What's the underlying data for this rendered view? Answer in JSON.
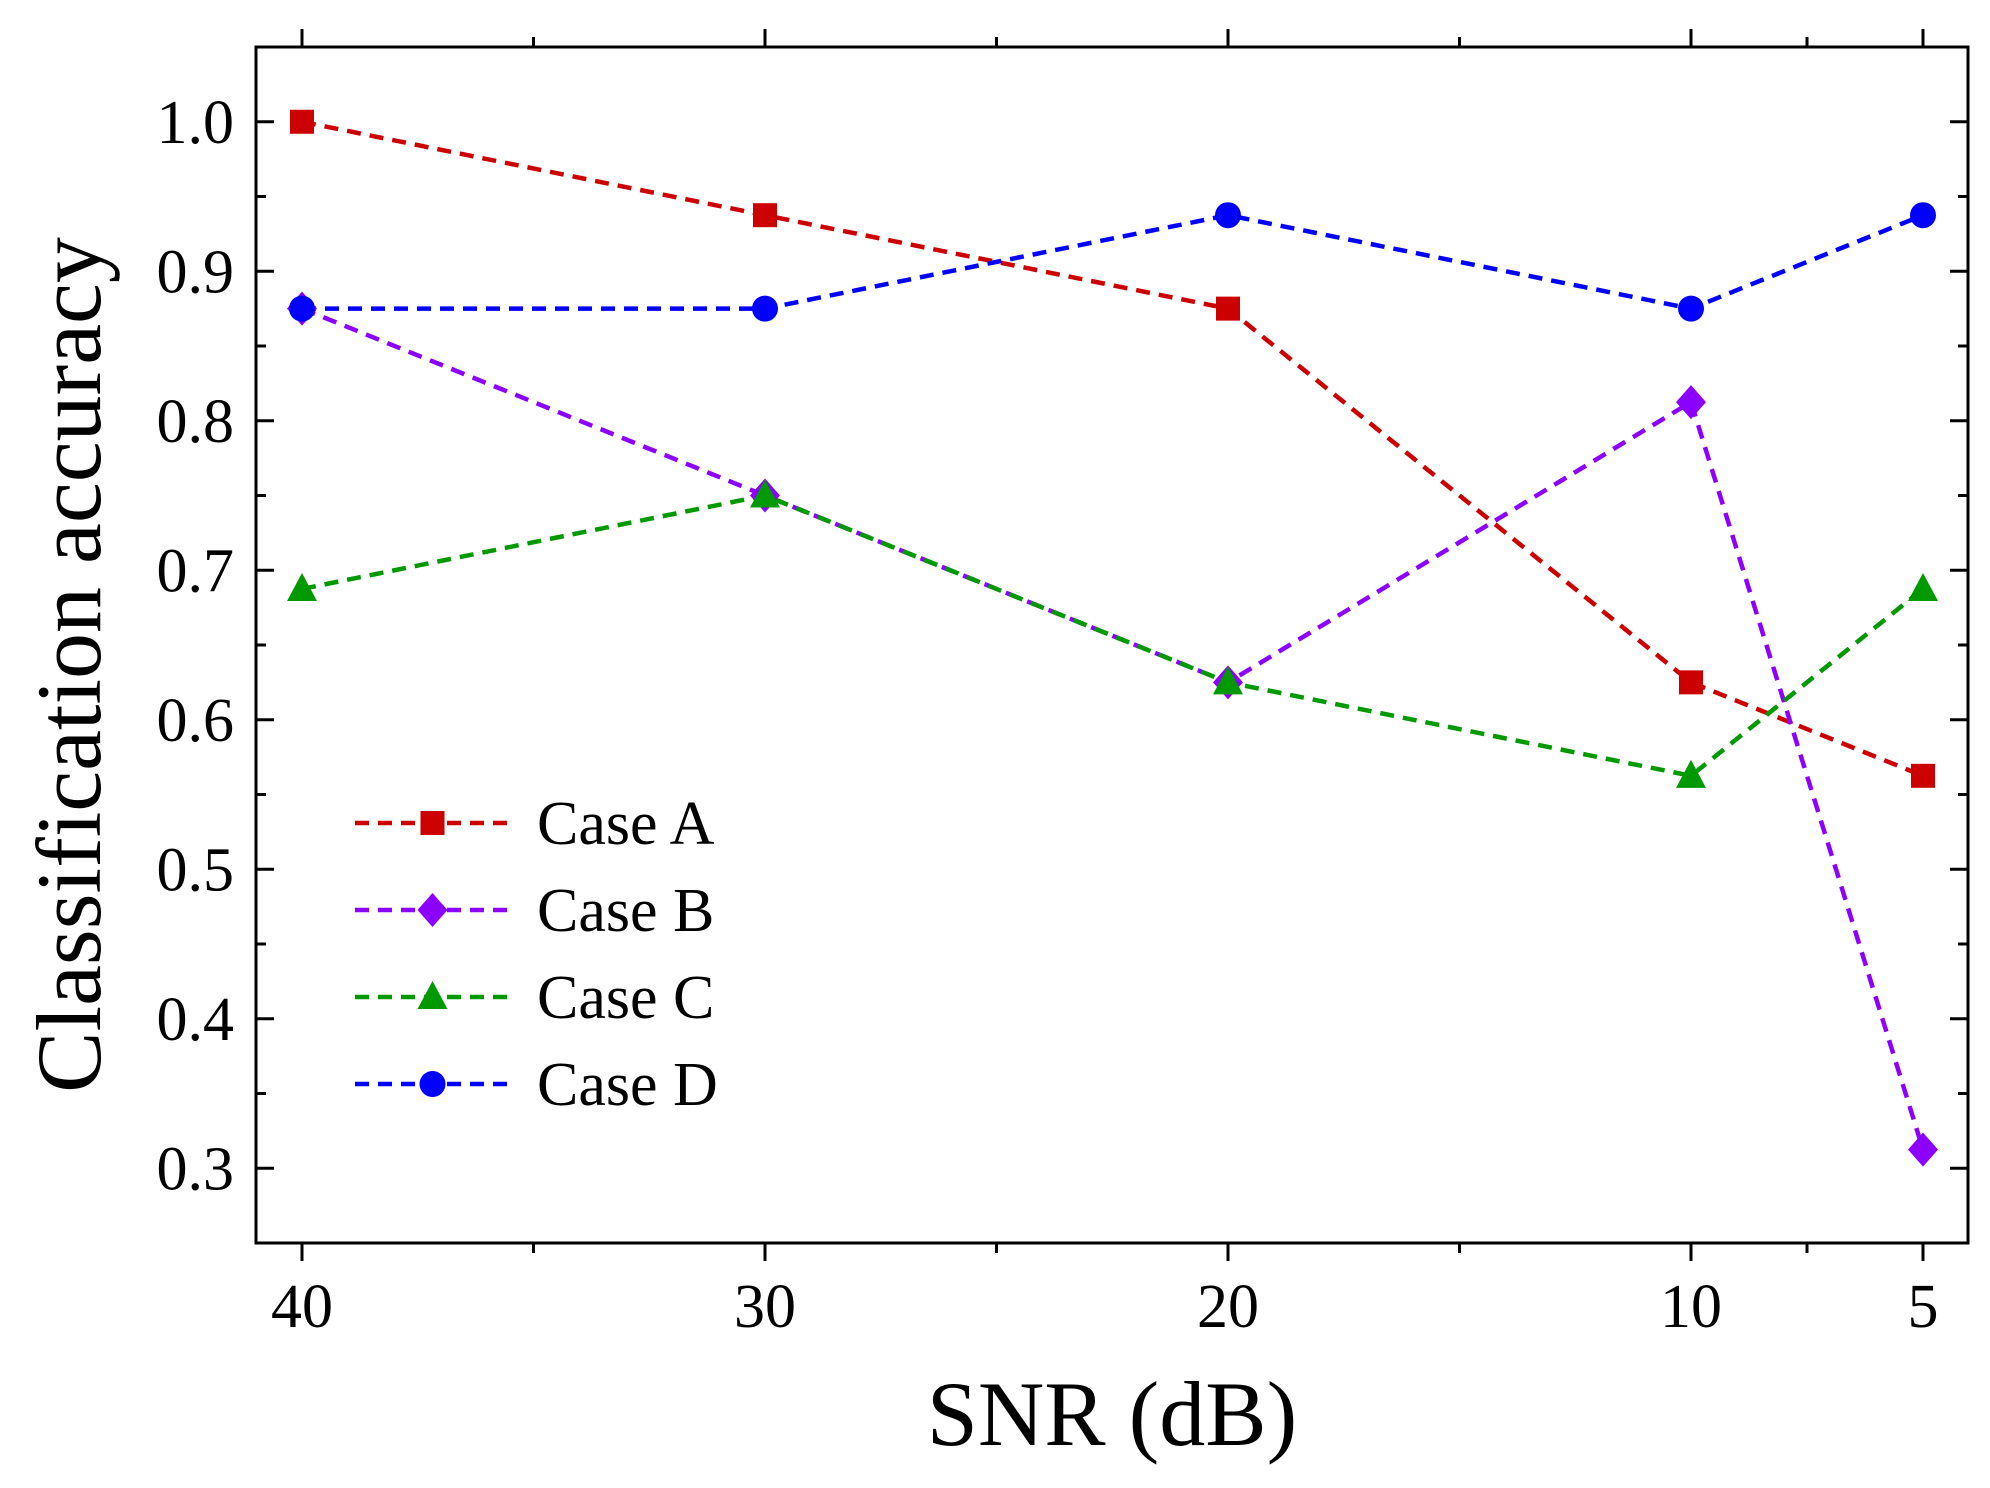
{
  "chart_data": {
    "type": "line",
    "title": "",
    "xlabel": "SNR (dB)",
    "ylabel": "Classification accuracy",
    "x": [
      40,
      30,
      20,
      10,
      5
    ],
    "x_tick_labels": [
      "40",
      "30",
      "20",
      "10",
      "5"
    ],
    "x_minor_ticks": [
      35,
      25,
      15,
      7.5
    ],
    "xlim": [
      41,
      4.5
    ],
    "ylim": [
      0.25,
      1.05
    ],
    "y_ticks": [
      0.3,
      0.4,
      0.5,
      0.6,
      0.7,
      0.8,
      0.9,
      1.0
    ],
    "y_tick_labels": [
      "0.3",
      "0.4",
      "0.5",
      "0.6",
      "0.7",
      "0.8",
      "0.9",
      "1.0"
    ],
    "grid": false,
    "legend_position": "bottom-left",
    "series": [
      {
        "name": "Case A",
        "marker": "square",
        "color": "#cc0000",
        "values": [
          1.0,
          0.9375,
          0.875,
          0.625,
          0.5625
        ]
      },
      {
        "name": "Case B",
        "marker": "diamond",
        "color": "#8b00ff",
        "values": [
          0.875,
          0.75,
          0.625,
          0.8125,
          0.3125
        ]
      },
      {
        "name": "Case C",
        "marker": "triangle",
        "color": "#009900",
        "values": [
          0.6875,
          0.75,
          0.625,
          0.5625,
          0.6875
        ]
      },
      {
        "name": "Case D",
        "marker": "circle",
        "color": "#0000ff",
        "values": [
          0.875,
          0.875,
          0.9375,
          0.875,
          0.9375
        ]
      }
    ]
  }
}
